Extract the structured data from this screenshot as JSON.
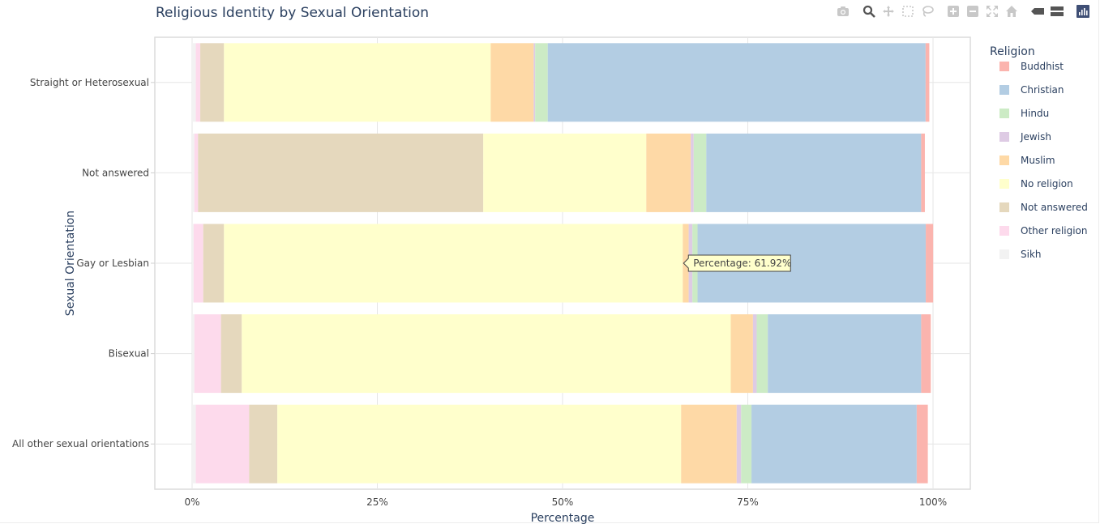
{
  "chart_data": {
    "type": "bar",
    "orientation": "horizontal",
    "barmode": "stack",
    "title": "Religious Identity by Sexual Orientation",
    "xlabel": "Percentage",
    "ylabel": "Sexual Orientation",
    "xlim": [
      0,
      100
    ],
    "x_ticks": [
      "0%",
      "25%",
      "50%",
      "75%",
      "100%"
    ],
    "x_tick_values": [
      0,
      25,
      50,
      75,
      100
    ],
    "grid": true,
    "legend_title": "Religion",
    "legend_position": "right",
    "categories": [
      "Straight or Heterosexual",
      "Not answered",
      "Gay or Lesbian",
      "Bisexual",
      "All other sexual orientations"
    ],
    "series": [
      {
        "name": "Sikh",
        "color": "#f2f2f2",
        "values": [
          0.5,
          0.3,
          0.2,
          0.3,
          0.5
        ]
      },
      {
        "name": "Other religion",
        "color": "#fddaec",
        "values": [
          0.6,
          0.5,
          1.3,
          3.6,
          7.2
        ]
      },
      {
        "name": "Not answered",
        "color": "#e5d8bd",
        "values": [
          3.2,
          38.5,
          2.8,
          2.8,
          3.8
        ]
      },
      {
        "name": "No religion",
        "color": "#ffffcc",
        "values": [
          36.0,
          22.0,
          61.92,
          66.0,
          54.5
        ]
      },
      {
        "name": "Muslim",
        "color": "#fed9a6",
        "values": [
          5.8,
          6.0,
          0.8,
          3.0,
          7.5
        ]
      },
      {
        "name": "Jewish",
        "color": "#decbe4",
        "values": [
          0.2,
          0.4,
          0.5,
          0.5,
          0.6
        ]
      },
      {
        "name": "Hindu",
        "color": "#ccebc5",
        "values": [
          1.7,
          1.7,
          0.7,
          1.5,
          1.4
        ]
      },
      {
        "name": "Christian",
        "color": "#b3cde3",
        "values": [
          51.0,
          29.0,
          30.8,
          20.7,
          22.3
        ]
      },
      {
        "name": "Buddhist",
        "color": "#fbb4ae",
        "values": [
          0.5,
          0.5,
          1.0,
          1.3,
          1.5
        ]
      }
    ],
    "legend_order": [
      "Buddhist",
      "Christian",
      "Hindu",
      "Jewish",
      "Muslim",
      "No religion",
      "Not answered",
      "Other religion",
      "Sikh"
    ],
    "hover": {
      "category": "Gay or Lesbian",
      "series": "No religion",
      "label": "Percentage: 61.92%"
    }
  }
}
